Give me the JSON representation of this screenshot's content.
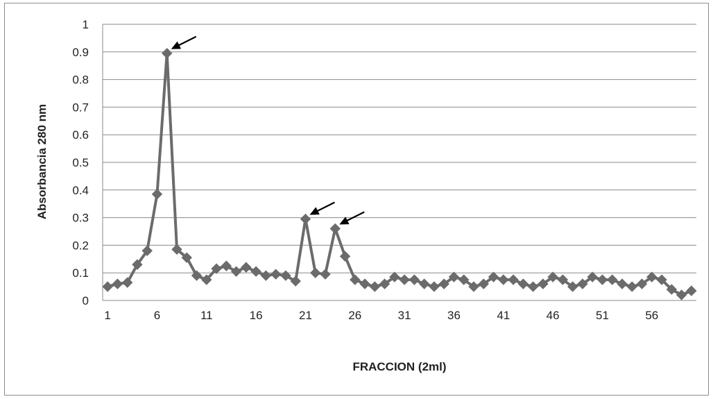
{
  "chart_data": {
    "type": "line",
    "title": "",
    "xlabel": "FRACCION (2ml)",
    "ylabel": "Absorbancia 280 nm",
    "ylim": [
      0,
      1
    ],
    "xlim": [
      1,
      60
    ],
    "y_ticks": [
      "0",
      "0.1",
      "0.2",
      "0.3",
      "0.4",
      "0.5",
      "0.6",
      "0.7",
      "0.8",
      "0.9",
      "1"
    ],
    "x_ticks": [
      "1",
      "6",
      "11",
      "16",
      "21",
      "26",
      "31",
      "36",
      "41",
      "46",
      "51",
      "56"
    ],
    "grid": "horizontal",
    "legend": "none",
    "series": [
      {
        "color": "#6b6b6b",
        "marker": "diamond",
        "x": [
          1,
          2,
          3,
          4,
          5,
          6,
          7,
          8,
          9,
          10,
          11,
          12,
          13,
          14,
          15,
          16,
          17,
          18,
          19,
          20,
          21,
          22,
          23,
          24,
          25,
          26,
          27,
          28,
          29,
          30,
          31,
          32,
          33,
          34,
          35,
          36,
          37,
          38,
          39,
          40,
          41,
          42,
          43,
          44,
          45,
          46,
          47,
          48,
          49,
          50,
          51,
          52,
          53,
          54,
          55,
          56,
          57,
          58,
          59,
          60
        ],
        "values": [
          0.05,
          0.06,
          0.065,
          0.13,
          0.18,
          0.385,
          0.895,
          0.185,
          0.155,
          0.09,
          0.075,
          0.115,
          0.125,
          0.105,
          0.12,
          0.105,
          0.09,
          0.095,
          0.09,
          0.07,
          0.295,
          0.1,
          0.095,
          0.26,
          0.16,
          0.075,
          0.06,
          0.05,
          0.06,
          0.085,
          0.075,
          0.075,
          0.06,
          0.05,
          0.06,
          0.085,
          0.075,
          0.05,
          0.06,
          0.085,
          0.075,
          0.075,
          0.06,
          0.05,
          0.06,
          0.085,
          0.075,
          0.05,
          0.06,
          0.085,
          0.075,
          0.075,
          0.06,
          0.05,
          0.06,
          0.085,
          0.075,
          0.04,
          0.02,
          0.035
        ]
      }
    ],
    "annotations": [
      {
        "type": "arrow",
        "points_to": {
          "x": 7,
          "y": 0.895
        }
      },
      {
        "type": "arrow",
        "points_to": {
          "x": 21,
          "y": 0.295
        }
      },
      {
        "type": "arrow",
        "points_to": {
          "x": 24,
          "y": 0.26
        }
      }
    ]
  }
}
